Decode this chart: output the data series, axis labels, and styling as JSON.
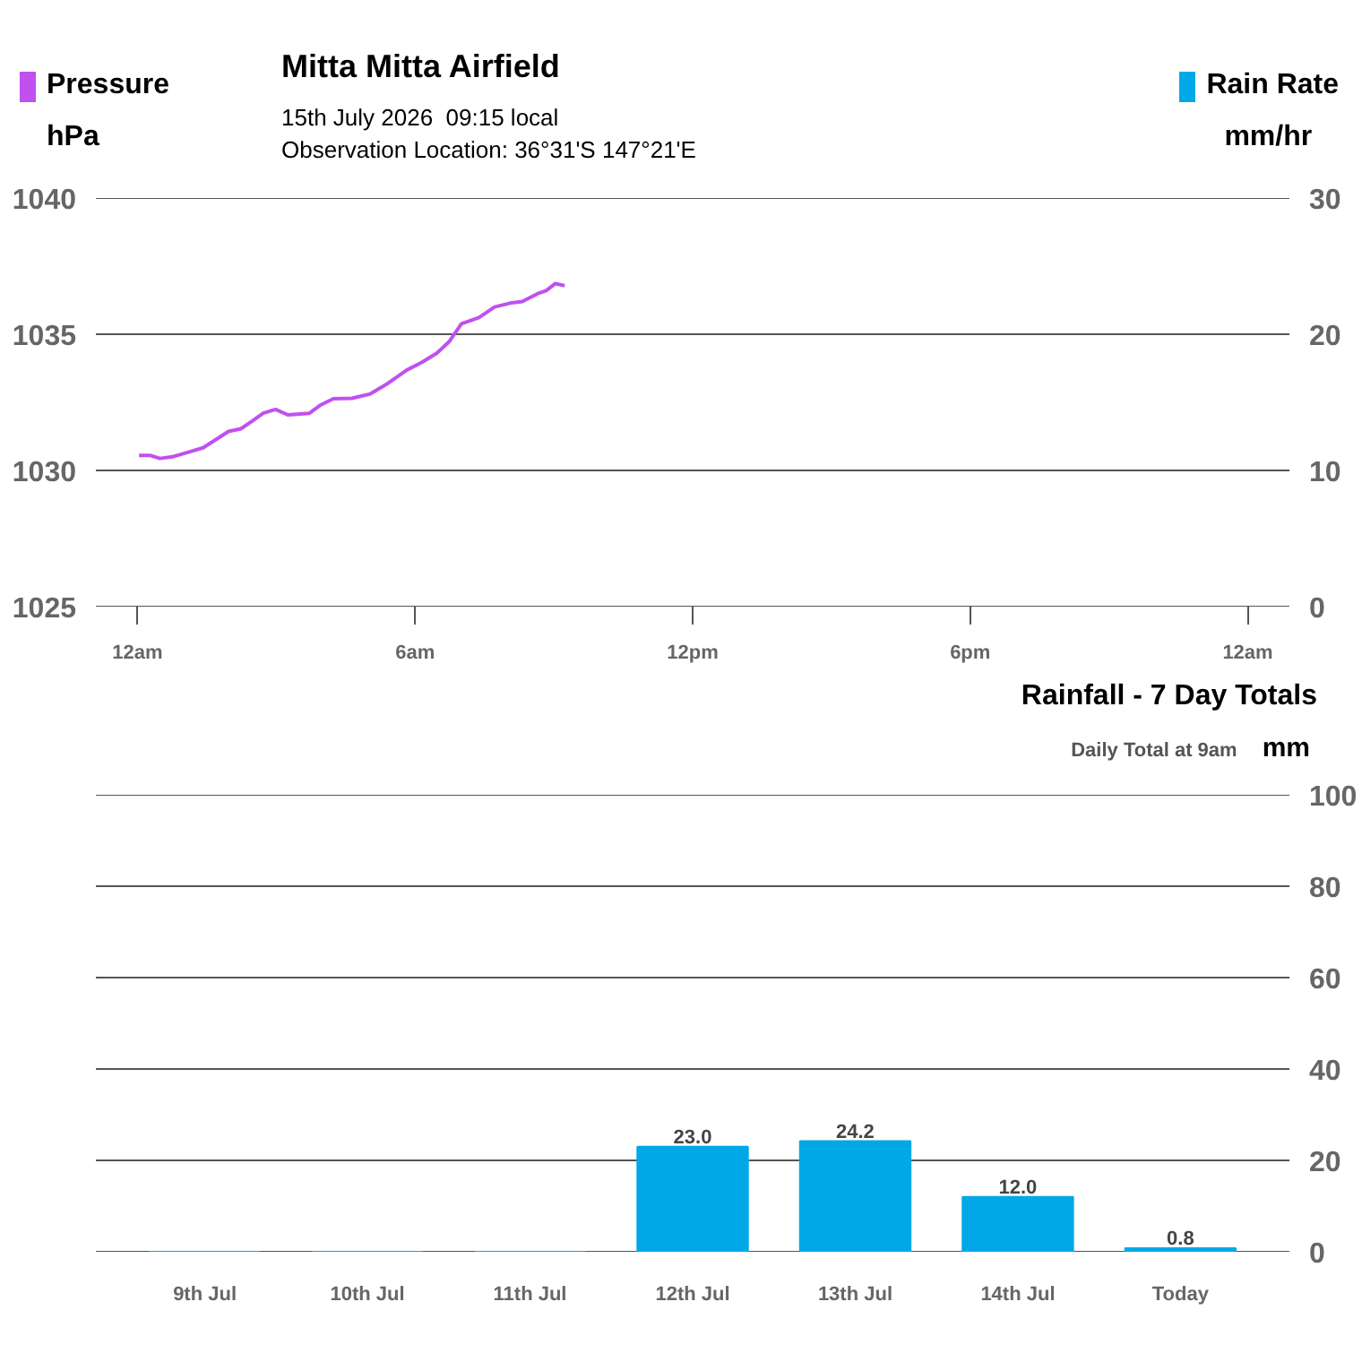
{
  "chart_data": [
    {
      "type": "line",
      "title": "Mitta Mitta Airfield",
      "subtitle": "15th July 2026  09:15 local",
      "annotations": [
        "Observation Location: 36°31'S 147°21'E"
      ],
      "ylabel": "hPa",
      "y2label": "mm/hr",
      "x": [
        "2026-07-15T00:02",
        "2026-07-15T00:17",
        "2026-07-15T00:29",
        "2026-07-15T00:45",
        "2026-07-15T01:05",
        "2026-07-15T01:25",
        "2026-07-15T01:40",
        "2026-07-15T01:58",
        "2026-07-15T02:14",
        "2026-07-15T02:28",
        "2026-07-15T02:43",
        "2026-07-15T02:59",
        "2026-07-15T03:15",
        "2026-07-15T03:43",
        "2026-07-15T03:58",
        "2026-07-15T04:14",
        "2026-07-15T04:38",
        "2026-07-15T05:02",
        "2026-07-15T05:25",
        "2026-07-15T05:49",
        "2026-07-15T06:09",
        "2026-07-15T06:28",
        "2026-07-15T06:44",
        "2026-07-15T07:00",
        "2026-07-15T07:23",
        "2026-07-15T07:43",
        "2026-07-15T08:03",
        "2026-07-15T08:19",
        "2026-07-15T08:39",
        "2026-07-15T08:50",
        "2026-07-15T09:02",
        "2026-07-15T09:14"
      ],
      "series": [
        {
          "name": "Pressure",
          "color": "#c050f0",
          "values": [
            1030.55,
            1030.55,
            1030.44,
            1030.5,
            1030.66,
            1030.83,
            1031.1,
            1031.43,
            1031.53,
            1031.8,
            1032.1,
            1032.24,
            1032.04,
            1032.1,
            1032.41,
            1032.63,
            1032.65,
            1032.81,
            1033.2,
            1033.68,
            1033.97,
            1034.3,
            1034.72,
            1035.38,
            1035.61,
            1036.0,
            1036.14,
            1036.2,
            1036.49,
            1036.6,
            1036.86,
            1036.78
          ]
        },
        {
          "name": "Rain Rate",
          "color": "#00a8e8",
          "axis": "y2",
          "values": [
            null,
            null,
            null,
            null,
            null,
            null,
            null,
            null,
            null,
            null,
            null,
            null,
            null,
            null,
            null,
            null,
            null,
            null,
            null,
            null,
            null,
            null,
            null,
            null,
            null,
            null,
            null,
            null,
            null,
            null,
            null,
            null
          ]
        }
      ],
      "xlim": [
        "2026-07-14T23:06",
        "2026-07-16T00:54"
      ],
      "xticks": [
        {
          "value": "2026-07-15T00:00",
          "label": "12am"
        },
        {
          "value": "2026-07-15T06:00",
          "label": "6am"
        },
        {
          "value": "2026-07-15T12:00",
          "label": "12pm"
        },
        {
          "value": "2026-07-15T18:00",
          "label": "6pm"
        },
        {
          "value": "2026-07-16T00:00",
          "label": "12am"
        }
      ],
      "ylim": [
        1025,
        1040
      ],
      "yticks": [
        1025,
        1030,
        1035,
        1040
      ],
      "y2lim": [
        0,
        30
      ],
      "y2ticks": [
        0,
        10,
        20,
        30
      ],
      "grid": "y",
      "legend": "top",
      "marker": "none",
      "line_style": "solid"
    },
    {
      "type": "bar",
      "title": "Rainfall - 7 Day Totals",
      "subtitle": "Daily Total at 9am",
      "ylabel": "mm",
      "categories": [
        "9th Jul",
        "10th Jul",
        "11th Jul",
        "12th Jul",
        "13th Jul",
        "14th Jul",
        "Today"
      ],
      "values": [
        0,
        0,
        0,
        23.0,
        24.2,
        12.0,
        0.8
      ],
      "value_labels": [
        null,
        null,
        null,
        "23.0",
        "24.2",
        "12.0",
        "0.8"
      ],
      "color": "#00a8e8",
      "ylim": [
        0,
        100
      ],
      "yticks": [
        0,
        20,
        40,
        60,
        80,
        100
      ],
      "grid": "y"
    }
  ]
}
